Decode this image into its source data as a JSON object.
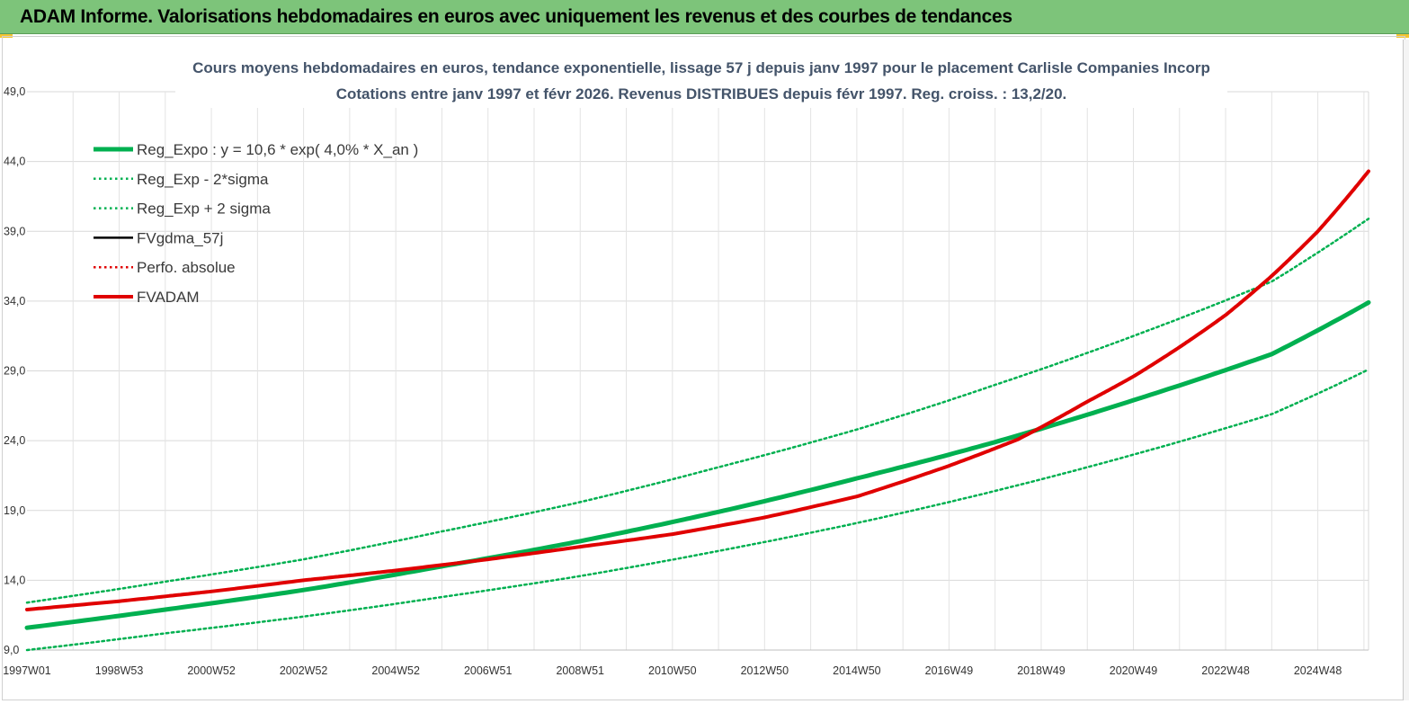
{
  "header": {
    "title": "ADAM Informe. Valorisations hebdomadaires en euros avec uniquement les revenus et des courbes de tendances"
  },
  "chart_data": {
    "type": "line",
    "title_line1": "Cours moyens hebdomadaires en euros, tendance exponentielle, lissage 57 j depuis janv 1997  pour le placement Carlisle Companies Incorp",
    "title_line2": "Cotations entre janv 1997 et févr 2026. Revenus DISTRIBUES depuis févr 1997. Reg. croiss. : 13,2/20.",
    "xlabel": "",
    "ylabel": "",
    "ylim": [
      9.0,
      49.0
    ],
    "yticks": [
      9.0,
      14.0,
      19.0,
      24.0,
      29.0,
      34.0,
      39.0,
      44.0,
      49.0
    ],
    "ytick_labels": [
      "9,0",
      "14,0",
      "19,0",
      "24,0",
      "29,0",
      "34,0",
      "39,0",
      "44,0",
      "49,0"
    ],
    "xlim": [
      1997.0,
      2026.1
    ],
    "x_tick_labels": [
      "1997W01",
      "1998W53",
      "2000W52",
      "2002W52",
      "2004W52",
      "2006W51",
      "2008W51",
      "2010W50",
      "2012W50",
      "2014W50",
      "2016W49",
      "2018W49",
      "2020W49",
      "2022W48",
      "2024W48"
    ],
    "x_tick_years": [
      1997.0,
      1999.0,
      2001.0,
      2003.0,
      2005.0,
      2007.0,
      2009.0,
      2011.0,
      2013.0,
      2015.0,
      2017.0,
      2019.0,
      2021.0,
      2023.0,
      2025.0
    ],
    "grid": true,
    "legend_position": "top-left",
    "series": [
      {
        "name": "Reg_Expo : y = 10,6 * exp( 4,0% *  X_an )",
        "color": "#00b050",
        "style": "solid-thick",
        "x": [
          1997.0,
          2000.0,
          2003.0,
          2006.0,
          2009.0,
          2012.0,
          2015.0,
          2018.0,
          2021.0,
          2024.0,
          2026.1
        ],
        "y": [
          10.6,
          11.9,
          13.3,
          15.0,
          16.8,
          18.9,
          21.3,
          23.9,
          26.9,
          30.2,
          33.9
        ]
      },
      {
        "name": "Reg_Exp - 2*sigma",
        "color": "#00b050",
        "style": "dotted",
        "x": [
          1997.0,
          2000.0,
          2003.0,
          2006.0,
          2009.0,
          2012.0,
          2015.0,
          2018.0,
          2021.0,
          2024.0,
          2026.1
        ],
        "y": [
          9.0,
          10.2,
          11.4,
          12.8,
          14.3,
          16.1,
          18.1,
          20.4,
          23.0,
          25.9,
          29.1
        ]
      },
      {
        "name": "Reg_Exp + 2 sigma",
        "color": "#00b050",
        "style": "dotted",
        "x": [
          1997.0,
          2000.0,
          2003.0,
          2006.0,
          2009.0,
          2012.0,
          2015.0,
          2018.0,
          2021.0,
          2024.0,
          2026.1
        ],
        "y": [
          12.4,
          13.9,
          15.5,
          17.5,
          19.6,
          22.1,
          24.8,
          28.0,
          31.5,
          35.4,
          39.9
        ]
      },
      {
        "name": "FVgdma_57j",
        "color": "#000000",
        "style": "solid",
        "x": [],
        "y": []
      },
      {
        "name": "Perfo. absolue",
        "color": "#e00000",
        "style": "dotted",
        "x": [],
        "y": []
      },
      {
        "name": "FVADAM",
        "color": "#e00000",
        "style": "solid-thick",
        "x": [
          1997.0,
          1999.0,
          2001.0,
          2003.0,
          2005.0,
          2007.0,
          2009.0,
          2011.0,
          2013.0,
          2015.0,
          2017.0,
          2018.5,
          2020.0,
          2021.0,
          2022.0,
          2023.0,
          2024.0,
          2025.0,
          2026.1
        ],
        "y": [
          11.9,
          12.5,
          13.2,
          14.0,
          14.7,
          15.5,
          16.4,
          17.3,
          18.5,
          20.0,
          22.2,
          24.1,
          26.8,
          28.6,
          30.7,
          33.0,
          35.8,
          39.0,
          43.3
        ]
      }
    ]
  }
}
